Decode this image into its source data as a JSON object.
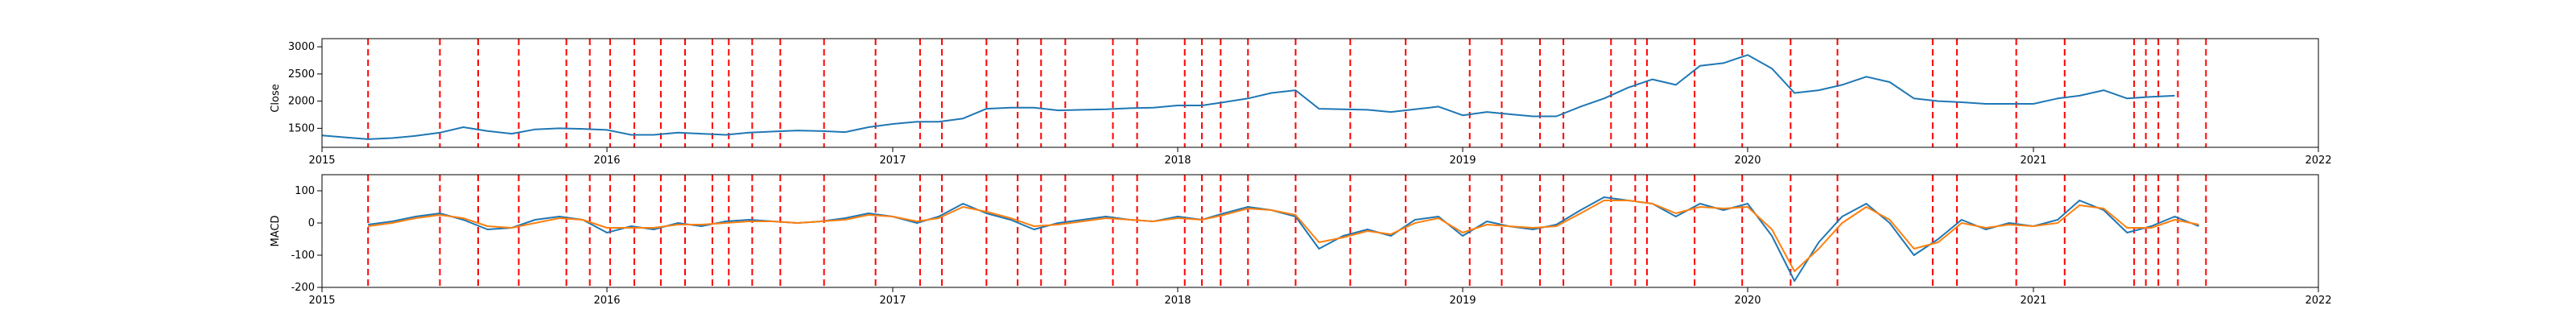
{
  "colors": {
    "close": "#1f77b4",
    "macd": "#1f77b4",
    "signal": "#ff7f0e",
    "event_line": "#ff0000"
  },
  "chart_data": [
    {
      "type": "line",
      "ylabel": "Close",
      "xlim": [
        "2015-01-01",
        "2022-01-01"
      ],
      "ylim": [
        1150,
        3150
      ],
      "yticks": [
        1500,
        2000,
        2500,
        3000
      ],
      "xticks": [
        "2015",
        "2016",
        "2017",
        "2018",
        "2019",
        "2020",
        "2021",
        "2022"
      ],
      "grid": false,
      "series": [
        {
          "color_key": "close",
          "points": [
            [
              "2015-01-01",
              1370
            ],
            [
              "2015-02-01",
              1330
            ],
            [
              "2015-03-01",
              1300
            ],
            [
              "2015-04-01",
              1320
            ],
            [
              "2015-05-01",
              1360
            ],
            [
              "2015-06-01",
              1420
            ],
            [
              "2015-07-01",
              1520
            ],
            [
              "2015-08-01",
              1450
            ],
            [
              "2015-09-01",
              1400
            ],
            [
              "2015-10-01",
              1480
            ],
            [
              "2015-11-01",
              1500
            ],
            [
              "2015-12-01",
              1490
            ],
            [
              "2016-01-01",
              1470
            ],
            [
              "2016-02-01",
              1380
            ],
            [
              "2016-03-01",
              1380
            ],
            [
              "2016-04-01",
              1420
            ],
            [
              "2016-05-01",
              1400
            ],
            [
              "2016-06-01",
              1380
            ],
            [
              "2016-07-01",
              1420
            ],
            [
              "2016-08-01",
              1440
            ],
            [
              "2016-09-01",
              1460
            ],
            [
              "2016-10-01",
              1450
            ],
            [
              "2016-11-01",
              1430
            ],
            [
              "2016-12-01",
              1520
            ],
            [
              "2017-01-01",
              1580
            ],
            [
              "2017-02-01",
              1620
            ],
            [
              "2017-03-01",
              1620
            ],
            [
              "2017-04-01",
              1680
            ],
            [
              "2017-05-01",
              1860
            ],
            [
              "2017-06-01",
              1880
            ],
            [
              "2017-07-01",
              1880
            ],
            [
              "2017-08-01",
              1830
            ],
            [
              "2017-09-01",
              1840
            ],
            [
              "2017-10-01",
              1850
            ],
            [
              "2017-11-01",
              1870
            ],
            [
              "2017-12-01",
              1880
            ],
            [
              "2018-01-01",
              1920
            ],
            [
              "2018-02-01",
              1920
            ],
            [
              "2018-03-01",
              1980
            ],
            [
              "2018-04-01",
              2050
            ],
            [
              "2018-05-01",
              2150
            ],
            [
              "2018-06-01",
              2200
            ],
            [
              "2018-07-01",
              1860
            ],
            [
              "2018-08-01",
              1850
            ],
            [
              "2018-09-01",
              1840
            ],
            [
              "2018-10-01",
              1800
            ],
            [
              "2018-11-01",
              1850
            ],
            [
              "2018-12-01",
              1900
            ],
            [
              "2019-01-01",
              1740
            ],
            [
              "2019-02-01",
              1800
            ],
            [
              "2019-03-01",
              1760
            ],
            [
              "2019-04-01",
              1720
            ],
            [
              "2019-05-01",
              1720
            ],
            [
              "2019-06-01",
              1900
            ],
            [
              "2019-07-01",
              2050
            ],
            [
              "2019-08-01",
              2250
            ],
            [
              "2019-09-01",
              2400
            ],
            [
              "2019-10-01",
              2300
            ],
            [
              "2019-11-01",
              2650
            ],
            [
              "2019-12-01",
              2700
            ],
            [
              "2020-01-01",
              2850
            ],
            [
              "2020-02-01",
              2600
            ],
            [
              "2020-03-01",
              2150
            ],
            [
              "2020-04-01",
              2200
            ],
            [
              "2020-05-01",
              2300
            ],
            [
              "2020-06-01",
              2450
            ],
            [
              "2020-07-01",
              2350
            ],
            [
              "2020-08-01",
              2050
            ],
            [
              "2020-09-01",
              2000
            ],
            [
              "2020-10-01",
              1980
            ],
            [
              "2020-11-01",
              1950
            ],
            [
              "2020-12-01",
              1950
            ],
            [
              "2021-01-01",
              1950
            ],
            [
              "2021-02-01",
              2050
            ],
            [
              "2021-03-01",
              2100
            ],
            [
              "2021-04-01",
              2200
            ],
            [
              "2021-05-01",
              2050
            ],
            [
              "2021-06-01",
              2080
            ],
            [
              "2021-07-01",
              2100
            ]
          ]
        }
      ]
    },
    {
      "type": "line",
      "ylabel": "MACD",
      "xlim": [
        "2015-01-01",
        "2022-01-01"
      ],
      "ylim": [
        -200,
        150
      ],
      "yticks": [
        -200,
        -100,
        0,
        100
      ],
      "xticks": [
        "2015",
        "2016",
        "2017",
        "2018",
        "2019",
        "2020",
        "2021",
        "2022"
      ],
      "grid": false,
      "series": [
        {
          "color_key": "macd",
          "points": [
            [
              "2015-03-01",
              -5
            ],
            [
              "2015-04-01",
              5
            ],
            [
              "2015-05-01",
              20
            ],
            [
              "2015-06-01",
              30
            ],
            [
              "2015-07-01",
              10
            ],
            [
              "2015-08-01",
              -20
            ],
            [
              "2015-09-01",
              -15
            ],
            [
              "2015-10-01",
              10
            ],
            [
              "2015-11-01",
              20
            ],
            [
              "2015-12-01",
              10
            ],
            [
              "2016-01-01",
              -30
            ],
            [
              "2016-02-01",
              -10
            ],
            [
              "2016-03-01",
              -20
            ],
            [
              "2016-04-01",
              0
            ],
            [
              "2016-05-01",
              -10
            ],
            [
              "2016-06-01",
              5
            ],
            [
              "2016-07-01",
              10
            ],
            [
              "2016-08-01",
              5
            ],
            [
              "2016-09-01",
              0
            ],
            [
              "2016-10-01",
              5
            ],
            [
              "2016-11-01",
              15
            ],
            [
              "2016-12-01",
              30
            ],
            [
              "2017-01-01",
              20
            ],
            [
              "2017-02-01",
              0
            ],
            [
              "2017-03-01",
              20
            ],
            [
              "2017-04-01",
              60
            ],
            [
              "2017-05-01",
              30
            ],
            [
              "2017-06-01",
              10
            ],
            [
              "2017-07-01",
              -20
            ],
            [
              "2017-08-01",
              0
            ],
            [
              "2017-09-01",
              10
            ],
            [
              "2017-10-01",
              20
            ],
            [
              "2017-11-01",
              10
            ],
            [
              "2017-12-01",
              5
            ],
            [
              "2018-01-01",
              20
            ],
            [
              "2018-02-01",
              10
            ],
            [
              "2018-03-01",
              30
            ],
            [
              "2018-04-01",
              50
            ],
            [
              "2018-05-01",
              40
            ],
            [
              "2018-06-01",
              20
            ],
            [
              "2018-07-01",
              -80
            ],
            [
              "2018-08-01",
              -40
            ],
            [
              "2018-09-01",
              -20
            ],
            [
              "2018-10-01",
              -40
            ],
            [
              "2018-11-01",
              10
            ],
            [
              "2018-12-01",
              20
            ],
            [
              "2019-01-01",
              -40
            ],
            [
              "2019-02-01",
              5
            ],
            [
              "2019-03-01",
              -10
            ],
            [
              "2019-04-01",
              -20
            ],
            [
              "2019-05-01",
              -5
            ],
            [
              "2019-06-01",
              40
            ],
            [
              "2019-07-01",
              80
            ],
            [
              "2019-08-01",
              70
            ],
            [
              "2019-09-01",
              60
            ],
            [
              "2019-10-01",
              20
            ],
            [
              "2019-11-01",
              60
            ],
            [
              "2019-12-01",
              40
            ],
            [
              "2020-01-01",
              60
            ],
            [
              "2020-02-01",
              -40
            ],
            [
              "2020-03-01",
              -180
            ],
            [
              "2020-04-01",
              -60
            ],
            [
              "2020-05-01",
              20
            ],
            [
              "2020-06-01",
              60
            ],
            [
              "2020-07-01",
              0
            ],
            [
              "2020-08-01",
              -100
            ],
            [
              "2020-09-01",
              -50
            ],
            [
              "2020-10-01",
              10
            ],
            [
              "2020-11-01",
              -20
            ],
            [
              "2020-12-01",
              0
            ],
            [
              "2021-01-01",
              -10
            ],
            [
              "2021-02-01",
              10
            ],
            [
              "2021-03-01",
              70
            ],
            [
              "2021-04-01",
              40
            ],
            [
              "2021-05-01",
              -30
            ],
            [
              "2021-06-01",
              -10
            ],
            [
              "2021-07-01",
              20
            ],
            [
              "2021-08-01",
              -10
            ]
          ]
        },
        {
          "color_key": "signal",
          "points": [
            [
              "2015-03-01",
              -10
            ],
            [
              "2015-04-01",
              0
            ],
            [
              "2015-05-01",
              15
            ],
            [
              "2015-06-01",
              25
            ],
            [
              "2015-07-01",
              15
            ],
            [
              "2015-08-01",
              -10
            ],
            [
              "2015-09-01",
              -15
            ],
            [
              "2015-10-01",
              0
            ],
            [
              "2015-11-01",
              15
            ],
            [
              "2015-12-01",
              10
            ],
            [
              "2016-01-01",
              -15
            ],
            [
              "2016-02-01",
              -15
            ],
            [
              "2016-03-01",
              -15
            ],
            [
              "2016-04-01",
              -5
            ],
            [
              "2016-05-01",
              -5
            ],
            [
              "2016-06-01",
              0
            ],
            [
              "2016-07-01",
              5
            ],
            [
              "2016-08-01",
              5
            ],
            [
              "2016-09-01",
              0
            ],
            [
              "2016-10-01",
              5
            ],
            [
              "2016-11-01",
              10
            ],
            [
              "2016-12-01",
              25
            ],
            [
              "2017-01-01",
              20
            ],
            [
              "2017-02-01",
              5
            ],
            [
              "2017-03-01",
              15
            ],
            [
              "2017-04-01",
              50
            ],
            [
              "2017-05-01",
              35
            ],
            [
              "2017-06-01",
              15
            ],
            [
              "2017-07-01",
              -10
            ],
            [
              "2017-08-01",
              -5
            ],
            [
              "2017-09-01",
              5
            ],
            [
              "2017-10-01",
              15
            ],
            [
              "2017-11-01",
              10
            ],
            [
              "2017-12-01",
              5
            ],
            [
              "2018-01-01",
              15
            ],
            [
              "2018-02-01",
              10
            ],
            [
              "2018-03-01",
              25
            ],
            [
              "2018-04-01",
              45
            ],
            [
              "2018-05-01",
              40
            ],
            [
              "2018-06-01",
              25
            ],
            [
              "2018-07-01",
              -60
            ],
            [
              "2018-08-01",
              -45
            ],
            [
              "2018-09-01",
              -25
            ],
            [
              "2018-10-01",
              -35
            ],
            [
              "2018-11-01",
              0
            ],
            [
              "2018-12-01",
              15
            ],
            [
              "2019-01-01",
              -30
            ],
            [
              "2019-02-01",
              -5
            ],
            [
              "2019-03-01",
              -10
            ],
            [
              "2019-04-01",
              -15
            ],
            [
              "2019-05-01",
              -10
            ],
            [
              "2019-06-01",
              30
            ],
            [
              "2019-07-01",
              70
            ],
            [
              "2019-08-01",
              70
            ],
            [
              "2019-09-01",
              60
            ],
            [
              "2019-10-01",
              30
            ],
            [
              "2019-11-01",
              50
            ],
            [
              "2019-12-01",
              45
            ],
            [
              "2020-01-01",
              50
            ],
            [
              "2020-02-01",
              -20
            ],
            [
              "2020-03-01",
              -150
            ],
            [
              "2020-04-01",
              -80
            ],
            [
              "2020-05-01",
              0
            ],
            [
              "2020-06-01",
              50
            ],
            [
              "2020-07-01",
              10
            ],
            [
              "2020-08-01",
              -80
            ],
            [
              "2020-09-01",
              -60
            ],
            [
              "2020-10-01",
              0
            ],
            [
              "2020-11-01",
              -15
            ],
            [
              "2020-12-01",
              -5
            ],
            [
              "2021-01-01",
              -10
            ],
            [
              "2021-02-01",
              0
            ],
            [
              "2021-03-01",
              55
            ],
            [
              "2021-04-01",
              45
            ],
            [
              "2021-05-01",
              -15
            ],
            [
              "2021-06-01",
              -15
            ],
            [
              "2021-07-01",
              10
            ],
            [
              "2021-08-01",
              -5
            ]
          ]
        }
      ]
    }
  ],
  "event_dates": [
    "2015-03-01",
    "2015-06-01",
    "2015-07-20",
    "2015-09-10",
    "2015-11-10",
    "2015-12-10",
    "2016-01-05",
    "2016-02-05",
    "2016-03-10",
    "2016-04-10",
    "2016-05-15",
    "2016-06-05",
    "2016-07-05",
    "2016-08-10",
    "2016-10-05",
    "2016-12-10",
    "2017-02-05",
    "2017-03-05",
    "2017-05-01",
    "2017-06-10",
    "2017-07-10",
    "2017-08-10",
    "2017-10-10",
    "2017-11-10",
    "2018-01-10",
    "2018-02-01",
    "2018-02-25",
    "2018-04-01",
    "2018-06-01",
    "2018-08-10",
    "2018-10-20",
    "2019-01-10",
    "2019-02-20",
    "2019-04-10",
    "2019-05-10",
    "2019-07-10",
    "2019-08-10",
    "2019-08-25",
    "2019-10-25",
    "2019-12-25",
    "2020-02-25",
    "2020-04-25",
    "2020-08-25",
    "2020-09-25",
    "2020-12-10",
    "2021-02-10",
    "2021-05-10",
    "2021-05-25",
    "2021-06-10",
    "2021-07-05",
    "2021-08-10"
  ]
}
